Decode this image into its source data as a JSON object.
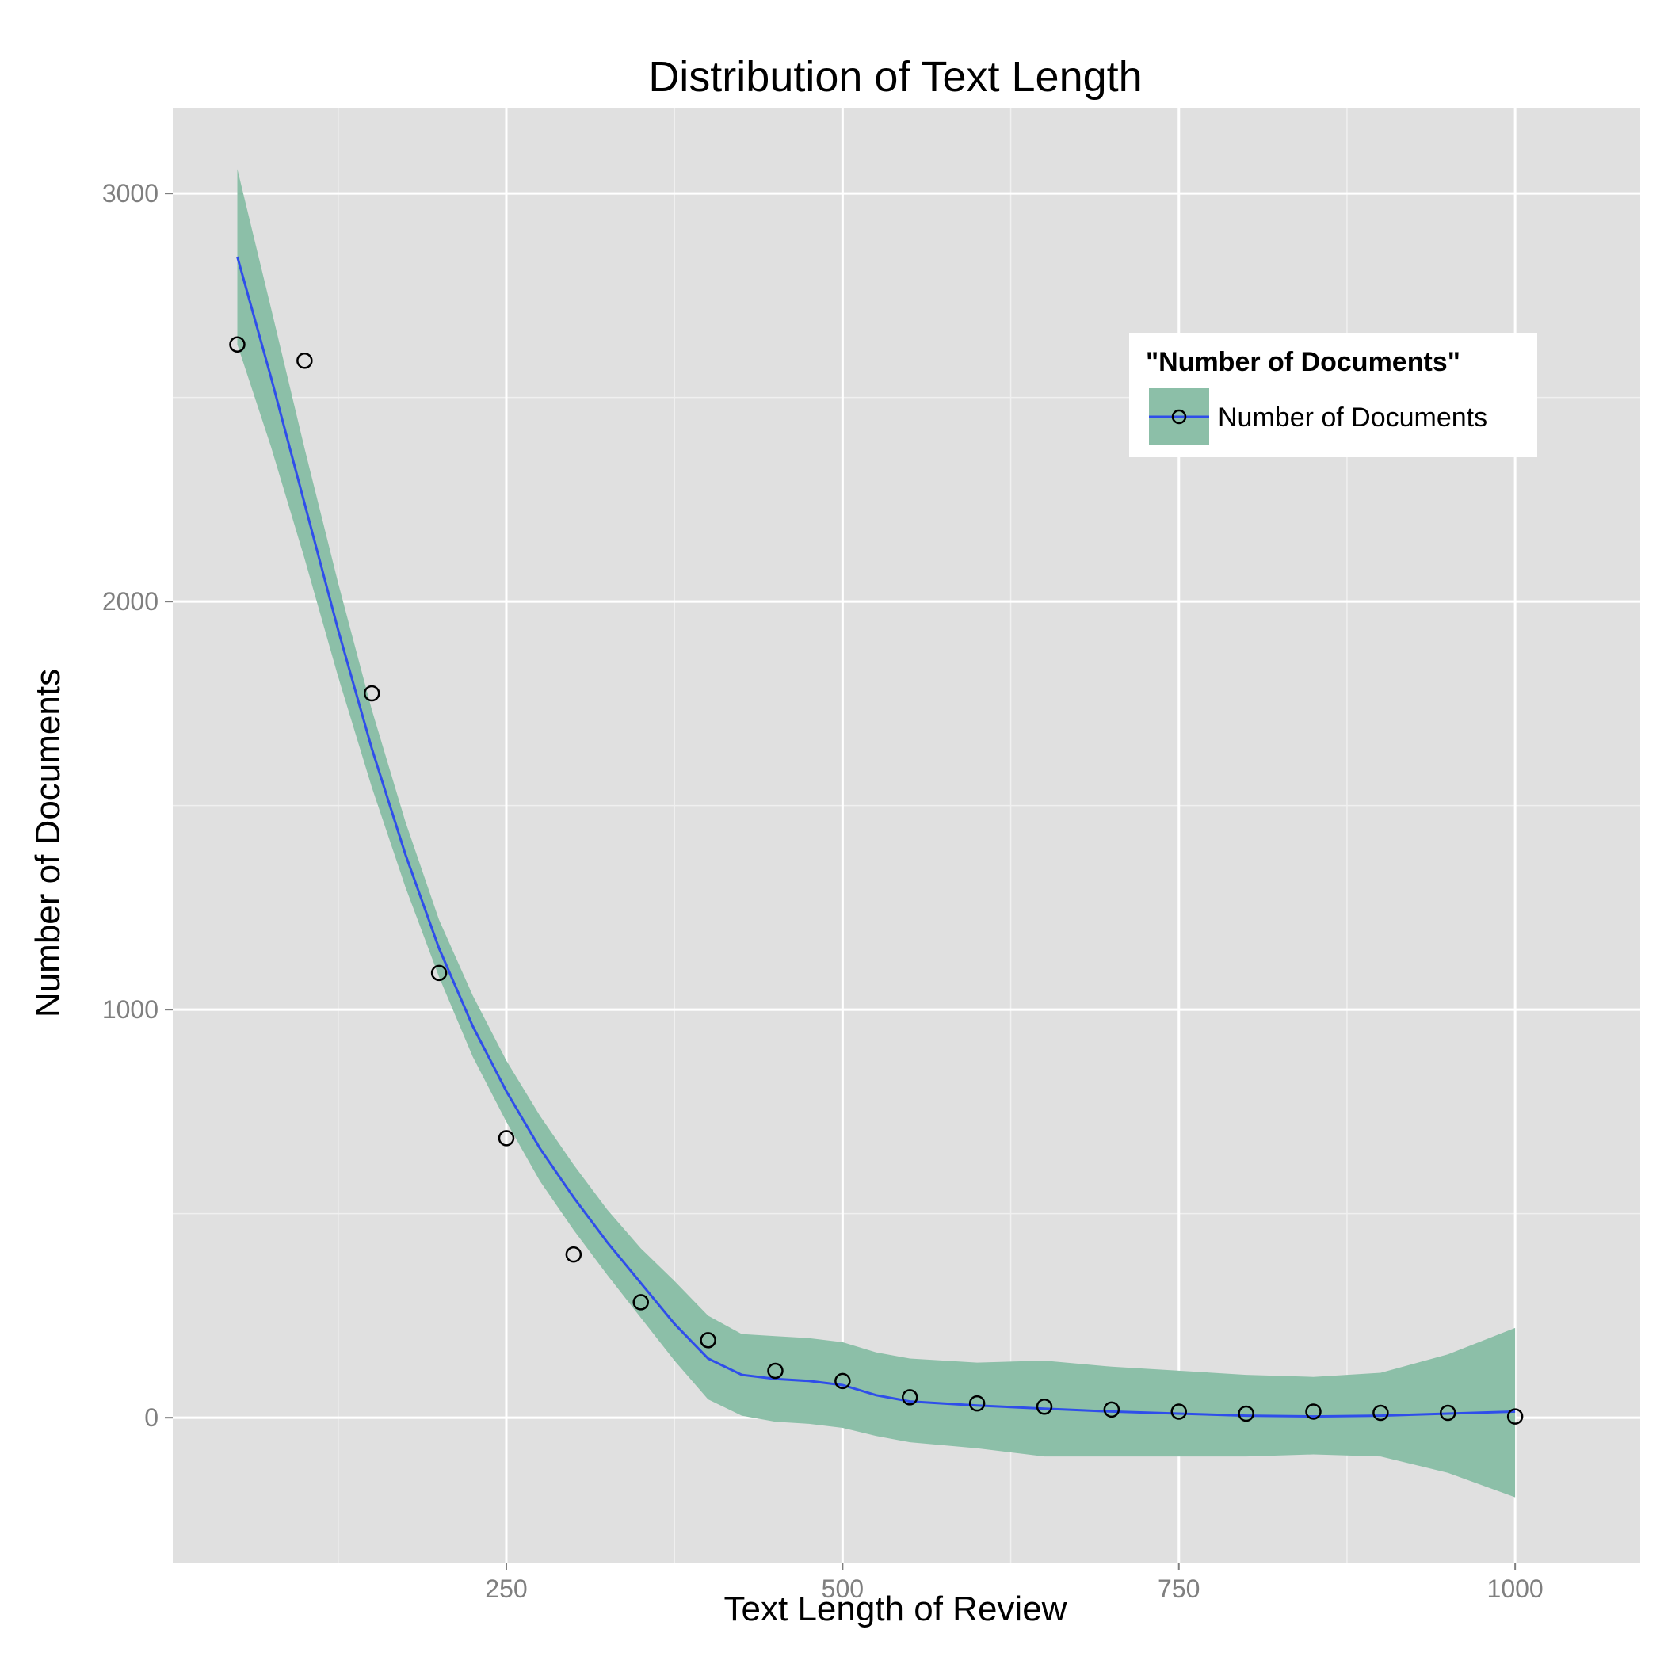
{
  "chart_data": {
    "type": "scatter",
    "title": "Distribution of Text Length",
    "xlabel": "Text Length of Review",
    "ylabel": "Number of Documents",
    "xlim": [
      2,
      1093
    ],
    "ylim": [
      -355,
      3210
    ],
    "x_ticks": [
      250,
      500,
      750,
      1000
    ],
    "x_tick_labels": [
      "250",
      "500",
      "750",
      "1000"
    ],
    "y_ticks": [
      0,
      1000,
      2000,
      3000
    ],
    "y_tick_labels": [
      "0",
      "1000",
      "2000",
      "3000"
    ],
    "grid": true,
    "legend": {
      "title": "\"Number of Documents\"",
      "position": "top-right",
      "entries": [
        "Number of Documents"
      ]
    },
    "colors": {
      "panel": "#e0e0e0",
      "grid_major": "#ffffff",
      "grid_minor": "#f0f0f0",
      "ribbon": "#8cbfa8",
      "line": "#2f4eea",
      "point_stroke": "#000000",
      "tick": "#7f7f7f"
    },
    "series": [
      {
        "name": "Number of Documents",
        "kind": "points",
        "x": [
          50,
          100,
          150,
          200,
          250,
          300,
          350,
          400,
          450,
          500,
          550,
          600,
          650,
          700,
          750,
          800,
          850,
          900,
          950,
          1000
        ],
        "y": [
          2630,
          2590,
          1775,
          1090,
          685,
          400,
          283,
          190,
          115,
          90,
          50,
          35,
          27,
          20,
          15,
          10,
          15,
          12,
          12,
          3
        ]
      },
      {
        "name": "Number of Documents",
        "kind": "smooth",
        "x": [
          50,
          75,
          100,
          125,
          150,
          175,
          200,
          225,
          250,
          275,
          300,
          325,
          350,
          375,
          400,
          425,
          450,
          475,
          500,
          525,
          550,
          600,
          650,
          700,
          750,
          800,
          850,
          900,
          950,
          1000
        ],
        "y": [
          2845,
          2550,
          2240,
          1930,
          1640,
          1380,
          1150,
          960,
          800,
          660,
          540,
          430,
          330,
          230,
          145,
          105,
          95,
          90,
          80,
          55,
          40,
          30,
          22,
          15,
          10,
          5,
          3,
          5,
          10,
          15
        ],
        "lower": [
          2630,
          2380,
          2105,
          1815,
          1545,
          1300,
          1080,
          885,
          725,
          580,
          460,
          350,
          245,
          140,
          45,
          5,
          -10,
          -15,
          -25,
          -45,
          -60,
          -75,
          -95,
          -95,
          -95,
          -95,
          -90,
          -95,
          -135,
          -195
        ],
        "upper": [
          3060,
          2720,
          2375,
          2045,
          1735,
          1460,
          1220,
          1035,
          875,
          740,
          620,
          510,
          415,
          335,
          250,
          205,
          200,
          195,
          185,
          160,
          145,
          135,
          140,
          125,
          115,
          105,
          100,
          110,
          155,
          220
        ]
      }
    ]
  }
}
